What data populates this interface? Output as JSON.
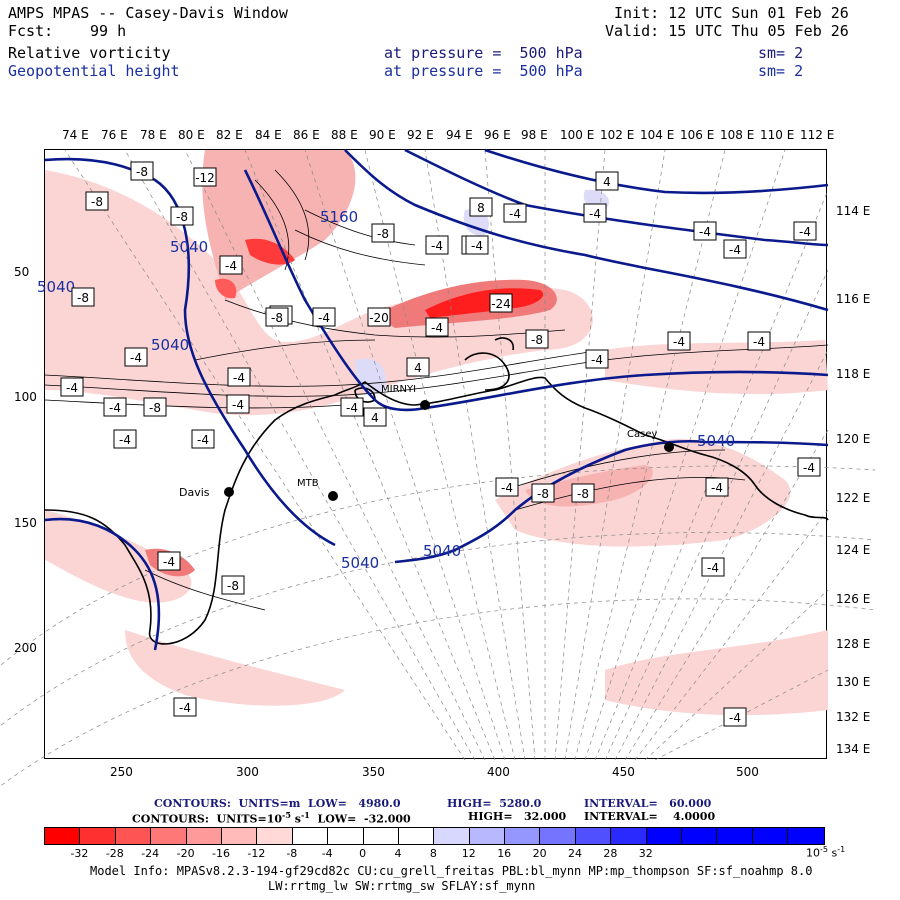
{
  "header": {
    "title": "AMPS MPAS -- Casey-Davis Window",
    "init": "Init: 12 UTC Sun 01 Feb 26",
    "fcst_label": "Fcst:",
    "fcst_value": "99 h",
    "valid": "Valid: 15 UTC Thu 05 Feb 26",
    "field1_name": "Relative vorticity",
    "field1_level": "at pressure =  500 hPa",
    "field1_sm": "sm= 2",
    "field2_name": "Geopotential height",
    "field2_level": "at pressure =  500 hPa",
    "field2_sm": "sm= 2"
  },
  "map": {
    "top_longitudes": [
      "74 E",
      "76 E",
      "78 E",
      "80 E",
      "82 E",
      "84 E",
      "86 E",
      "88 E",
      "90 E",
      "92 E",
      "94 E",
      "96 E",
      "98 E",
      "100 E",
      "102 E",
      "104 E",
      "106 E",
      "108 E",
      "110 E",
      "112 E"
    ],
    "right_longitudes": [
      "114 E",
      "116 E",
      "118 E",
      "120 E",
      "122 E",
      "124 E",
      "126 E",
      "128 E",
      "130 E",
      "132 E",
      "134 E"
    ],
    "left_grid_ticks": [
      "50",
      "100",
      "150",
      "200"
    ],
    "bottom_grid_ticks": [
      "250",
      "300",
      "350",
      "400",
      "450",
      "500"
    ],
    "stations": [
      {
        "name": "Davis"
      },
      {
        "name": "MTB"
      },
      {
        "name": "MIRNYI"
      },
      {
        "name": "Casey"
      }
    ],
    "height_contour_labels": [
      "5040",
      "5040",
      "5040",
      "5040",
      "5040",
      "5160",
      "5040"
    ],
    "vorticity_box_labels": [
      "-8",
      "-12",
      "-8",
      "-8",
      "-4",
      "-4",
      "-4",
      "-8",
      "-4",
      "-4",
      "-8",
      "-4",
      "-4",
      "-4",
      "-4",
      "-8",
      "-20",
      "-24",
      "-8",
      "-4",
      "4",
      "-4",
      "-4",
      "-4",
      "-8",
      "-4",
      "-4",
      "-4",
      "-4",
      "4",
      "-4",
      "8",
      "-4",
      "4",
      "-8",
      "-8",
      "-4",
      "-4",
      "-8",
      "-4",
      "-4",
      "-4",
      "-4",
      "-4",
      "-4",
      "-4",
      "-4",
      "-4"
    ],
    "colors": {
      "height_contour": "#0a1a8c",
      "coast": "#000000",
      "neg_strong": "#ff1e1e",
      "neg_mid": "#f07a7a",
      "neg_light": "#fbd4d4",
      "pos_light": "#dcdcf8"
    }
  },
  "contour_info": {
    "line1_a": "CONTOURS:  UNITS=m  LOW=   4980.0",
    "line1_b": "HIGH=  5280.0",
    "line1_c": "INTERVAL=   60.000",
    "line2_a": "CONTOURS:  UNITS=10",
    "line2_exp": "-5",
    "line2_b": " s",
    "line2_exp2": "-1",
    "line2_c": "  LOW=  -32.000",
    "line2_d": "HIGH=   32.000",
    "line2_e": "INTERVAL=    4.0000"
  },
  "colorbar": {
    "colors": [
      "#ff0000",
      "#ff3030",
      "#ff5454",
      "#ff7878",
      "#ff9a9a",
      "#ffbaba",
      "#ffd8d8",
      "#ffffff",
      "#ffffff",
      "#ffffff",
      "#ffffff",
      "#d8d8ff",
      "#b8b8ff",
      "#9696ff",
      "#7474ff",
      "#5050ff",
      "#2a2aff",
      "#0000ff",
      "#0000ff",
      "#0000ff",
      "#0000ff",
      "#0000ff"
    ],
    "ticks": [
      "-32",
      "-28",
      "-24",
      "-20",
      "-16",
      "-12",
      "-8",
      "-4",
      "0",
      "4",
      "8",
      "12",
      "16",
      "20",
      "24",
      "28",
      "32"
    ],
    "units": "10",
    "units_exp": "-5",
    "units_b": " s",
    "units_exp2": "-1"
  },
  "footer": {
    "line1": "Model Info: MPASv8.2.3-194-gf29cd82c CU:cu_grell_freitas PBL:bl_mynn MP:mp_thompson SF:sf_noahmp 8.0",
    "line2": "LW:rrtmg_lw SW:rrtmg_sw SFLAY:sf_mynn"
  }
}
